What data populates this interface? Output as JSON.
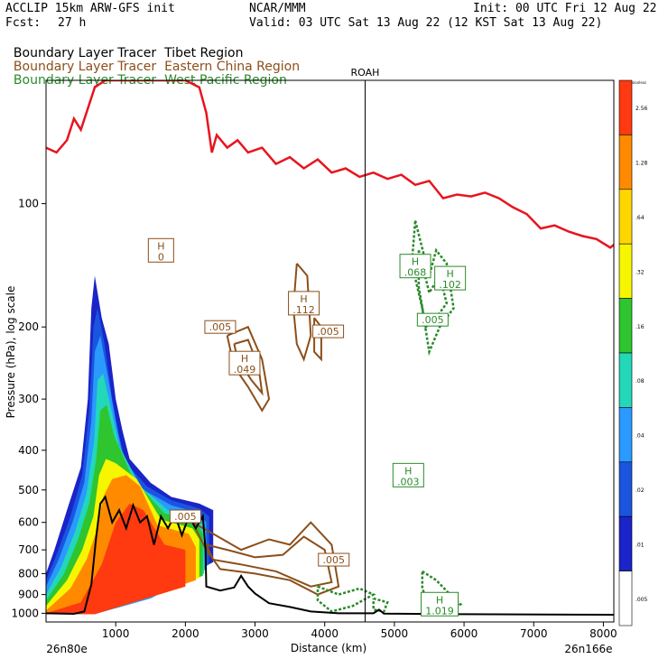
{
  "header": {
    "model": "ACCLIP 15km ARW-GFS init",
    "org": "NCAR/MMM",
    "init": "Init: 00 UTC Fri 12 Aug 22",
    "fcst_label": "Fcst:",
    "fcst_value": "27 h",
    "valid": "Valid: 03 UTC Sat 13 Aug 22 (12 KST Sat 13 Aug 22)"
  },
  "legend": [
    {
      "prefix": "Boundary Layer Tracer",
      "region": "Tibet Region",
      "color": "#000000"
    },
    {
      "prefix": "Boundary Layer Tracer",
      "region": "Eastern China Region",
      "color": "#8b4f1a"
    },
    {
      "prefix": "Boundary Layer Tracer",
      "region": "West Pacific Region",
      "color": "#2a8a2a"
    }
  ],
  "chart_data": {
    "type": "cross-section",
    "xlabel": "Distance (km)",
    "ylabel": "Pressure (hPa), log scale",
    "x_range": [
      0,
      8150
    ],
    "y_range_hPa": [
      1050,
      50
    ],
    "x_ticks": [
      1000,
      2000,
      3000,
      4000,
      5000,
      6000,
      7000,
      8000
    ],
    "y_ticks": [
      100,
      200,
      300,
      400,
      500,
      600,
      700,
      800,
      900,
      1000
    ],
    "left_endpoint": "26n80e",
    "right_endpoint": "26n166e",
    "station": {
      "name": "ROAH",
      "x": 4580
    },
    "colorbar": {
      "title": "Dimensionless",
      "levels": [
        "2.56",
        "1.28",
        ".64",
        ".32",
        ".16",
        ".08",
        ".04",
        ".02",
        ".01",
        ".005"
      ],
      "colors": [
        "#ff3a10",
        "#ff8a00",
        "#ffd700",
        "#f6f600",
        "#2ec52e",
        "#22d8b8",
        "#2a9aff",
        "#1a55e0",
        "#1a24c8",
        "#ffffff"
      ]
    },
    "tropopause_color": "#e8141e",
    "tropopause": [
      [
        0,
        73
      ],
      [
        150,
        75
      ],
      [
        300,
        70
      ],
      [
        400,
        62
      ],
      [
        500,
        66
      ],
      [
        700,
        52
      ],
      [
        850,
        50
      ],
      [
        1050,
        50
      ],
      [
        2000,
        50
      ],
      [
        2200,
        52
      ],
      [
        2300,
        60
      ],
      [
        2380,
        75
      ],
      [
        2450,
        68
      ],
      [
        2600,
        73
      ],
      [
        2750,
        70
      ],
      [
        2900,
        75
      ],
      [
        3100,
        73
      ],
      [
        3300,
        80
      ],
      [
        3500,
        77
      ],
      [
        3700,
        82
      ],
      [
        3900,
        78
      ],
      [
        4100,
        84
      ],
      [
        4300,
        82
      ],
      [
        4500,
        86
      ],
      [
        4700,
        84
      ],
      [
        4900,
        87
      ],
      [
        5100,
        85
      ],
      [
        5300,
        90
      ],
      [
        5500,
        88
      ],
      [
        5700,
        97
      ],
      [
        5900,
        95
      ],
      [
        6100,
        96
      ],
      [
        6300,
        94
      ],
      [
        6500,
        97
      ],
      [
        6700,
        102
      ],
      [
        6900,
        106
      ],
      [
        7100,
        115
      ],
      [
        7300,
        113
      ],
      [
        7500,
        117
      ],
      [
        7700,
        120
      ],
      [
        7900,
        122
      ],
      [
        8100,
        128
      ],
      [
        8150,
        126
      ]
    ],
    "terrain": [
      [
        0,
        1000
      ],
      [
        400,
        1003
      ],
      [
        550,
        990
      ],
      [
        650,
        850
      ],
      [
        720,
        650
      ],
      [
        780,
        540
      ],
      [
        850,
        520
      ],
      [
        950,
        600
      ],
      [
        1050,
        560
      ],
      [
        1150,
        620
      ],
      [
        1250,
        545
      ],
      [
        1350,
        600
      ],
      [
        1450,
        580
      ],
      [
        1550,
        680
      ],
      [
        1650,
        580
      ],
      [
        1750,
        620
      ],
      [
        1850,
        575
      ],
      [
        1950,
        645
      ],
      [
        2050,
        580
      ],
      [
        2150,
        620
      ],
      [
        2250,
        580
      ],
      [
        2290,
        700
      ],
      [
        2300,
        860
      ],
      [
        2500,
        880
      ],
      [
        2700,
        865
      ],
      [
        2800,
        810
      ],
      [
        2900,
        860
      ],
      [
        3000,
        895
      ],
      [
        3200,
        945
      ],
      [
        3500,
        965
      ],
      [
        3800,
        990
      ],
      [
        4200,
        1000
      ],
      [
        4700,
        1000
      ],
      [
        4780,
        980
      ],
      [
        4850,
        1002
      ],
      [
        6000,
        1005
      ],
      [
        8150,
        1008
      ]
    ],
    "annotations": [
      {
        "label": "H",
        "value": "0",
        "x": 1650,
        "p": 130,
        "color": "#8b4f1a"
      },
      {
        "label": "H",
        "value": ".112",
        "x": 3700,
        "p": 175,
        "color": "#8b4f1a"
      },
      {
        "label": "",
        "value": ".005",
        "x": 2500,
        "p": 200,
        "color": "#8b4f1a"
      },
      {
        "label": "",
        "value": ".005",
        "x": 4050,
        "p": 205,
        "color": "#8b4f1a"
      },
      {
        "label": "H",
        "value": ".049",
        "x": 2850,
        "p": 245,
        "color": "#8b4f1a"
      },
      {
        "label": "",
        "value": ".005",
        "x": 2000,
        "p": 580,
        "color": "#8b4f1a"
      },
      {
        "label": "",
        "value": ".005",
        "x": 4130,
        "p": 740,
        "color": "#8b4f1a"
      },
      {
        "label": "H",
        "value": ".068",
        "x": 5300,
        "p": 142,
        "color": "#2a8a2a"
      },
      {
        "label": "H",
        "value": ".102",
        "x": 5800,
        "p": 152,
        "color": "#2a8a2a"
      },
      {
        "label": "",
        "value": ".005",
        "x": 5550,
        "p": 192,
        "color": "#2a8a2a"
      },
      {
        "label": "H",
        "value": ".003",
        "x": 5200,
        "p": 460,
        "color": "#2a8a2a"
      },
      {
        "label": "H",
        "value": "1.019",
        "x": 5650,
        "p": 950,
        "color": "#2a8a2a"
      }
    ]
  }
}
